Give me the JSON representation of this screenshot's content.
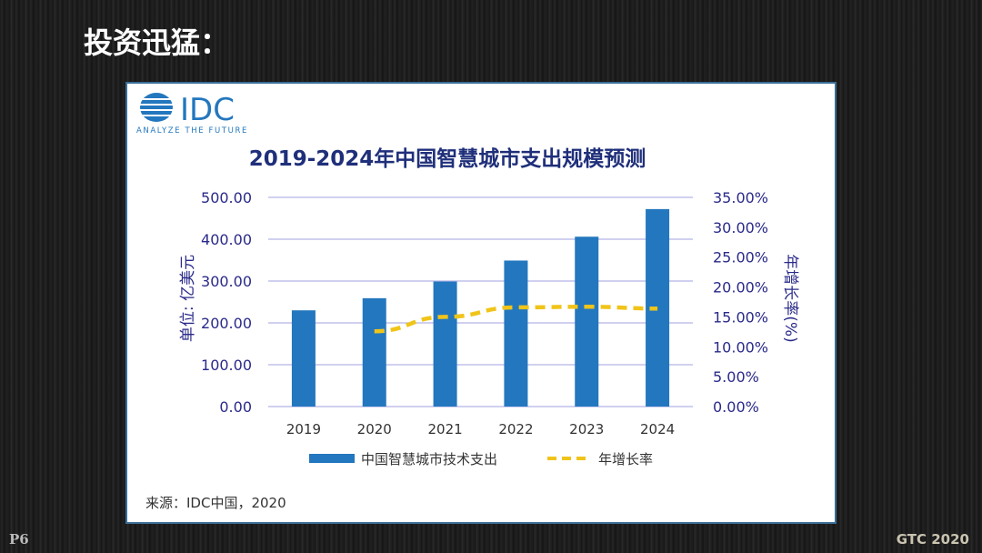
{
  "slide": {
    "heading": "投资迅猛：",
    "page": "P6",
    "brand": "GTC 2020"
  },
  "logo": {
    "text": "IDC",
    "tagline": "ANALYZE THE FUTURE"
  },
  "source": "来源：IDC中国，2020",
  "colors": {
    "bar": "#2377be",
    "line": "#f0c419",
    "axis_text": "#2a2a8a",
    "grid": "#c0c0ec"
  },
  "chart_data": {
    "type": "bar",
    "title": "2019-2024年中国智慧城市支出规模预测",
    "categories": [
      "2019",
      "2020",
      "2021",
      "2022",
      "2023",
      "2024"
    ],
    "ylabel": "单位: 亿美元",
    "y2label": "年增长率(%)",
    "ylim": [
      0,
      500
    ],
    "y2lim": [
      0,
      35
    ],
    "yticks": [
      "0.00",
      "100.00",
      "200.00",
      "300.00",
      "400.00",
      "500.00"
    ],
    "y2ticks": [
      "0.00%",
      "5.00%",
      "10.00%",
      "15.00%",
      "20.00%",
      "25.00%",
      "30.00%",
      "35.00%"
    ],
    "grid": true,
    "legend_position": "bottom",
    "series": [
      {
        "name": "中国智慧城市技术支出",
        "type": "bar",
        "axis": "left",
        "values": [
          230,
          259,
          299,
          349,
          406,
          472
        ]
      },
      {
        "name": "年增长率",
        "type": "line",
        "style": "dashed",
        "axis": "right",
        "values": [
          null,
          12.6,
          15.0,
          16.6,
          16.7,
          16.4
        ]
      }
    ]
  }
}
